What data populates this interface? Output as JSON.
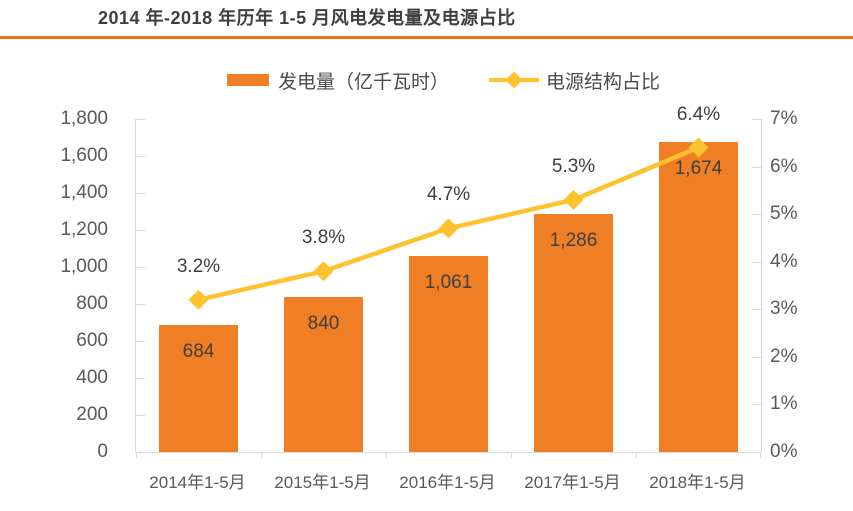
{
  "title": "2014 年-2018 年历年 1-5 月风电发电量及电源占比",
  "colors": {
    "bar": "#EF7E25",
    "line": "#FFC12E",
    "title_rule": "#ED7620",
    "axis": "#D9D9D9",
    "tick_label": "#595959",
    "data_label": "#3F3F3F"
  },
  "legend": {
    "bar_label": "发电量（亿千瓦时）",
    "line_label": "电源结构占比"
  },
  "chart_data": {
    "type": "combo",
    "title": "2014 年-2018 年历年 1-5 月风电发电量及电源占比",
    "categories": [
      "2014年1-5月",
      "2015年1-5月",
      "2016年1-5月",
      "2017年1-5月",
      "2018年1-5月"
    ],
    "series": [
      {
        "name": "发电量（亿千瓦时）",
        "type": "bar",
        "axis": "left",
        "values": [
          684,
          840,
          1061,
          1286,
          1674
        ],
        "data_labels": [
          "684",
          "840",
          "1,061",
          "1,286",
          "1,674"
        ]
      },
      {
        "name": "电源结构占比",
        "type": "line",
        "axis": "right",
        "values": [
          3.2,
          3.8,
          4.7,
          5.3,
          6.4
        ],
        "data_labels": [
          "3.2%",
          "3.8%",
          "4.7%",
          "5.3%",
          "6.4%"
        ]
      }
    ],
    "left_axis": {
      "min": 0,
      "max": 1800,
      "step": 200,
      "labels": [
        "0",
        "200",
        "400",
        "600",
        "800",
        "1,000",
        "1,200",
        "1,400",
        "1,600",
        "1,800"
      ]
    },
    "right_axis": {
      "min": 0,
      "max": 7,
      "step": 1,
      "labels": [
        "0%",
        "1%",
        "2%",
        "3%",
        "4%",
        "5%",
        "6%",
        "7%"
      ]
    },
    "grid": false,
    "legend_position": "top"
  }
}
